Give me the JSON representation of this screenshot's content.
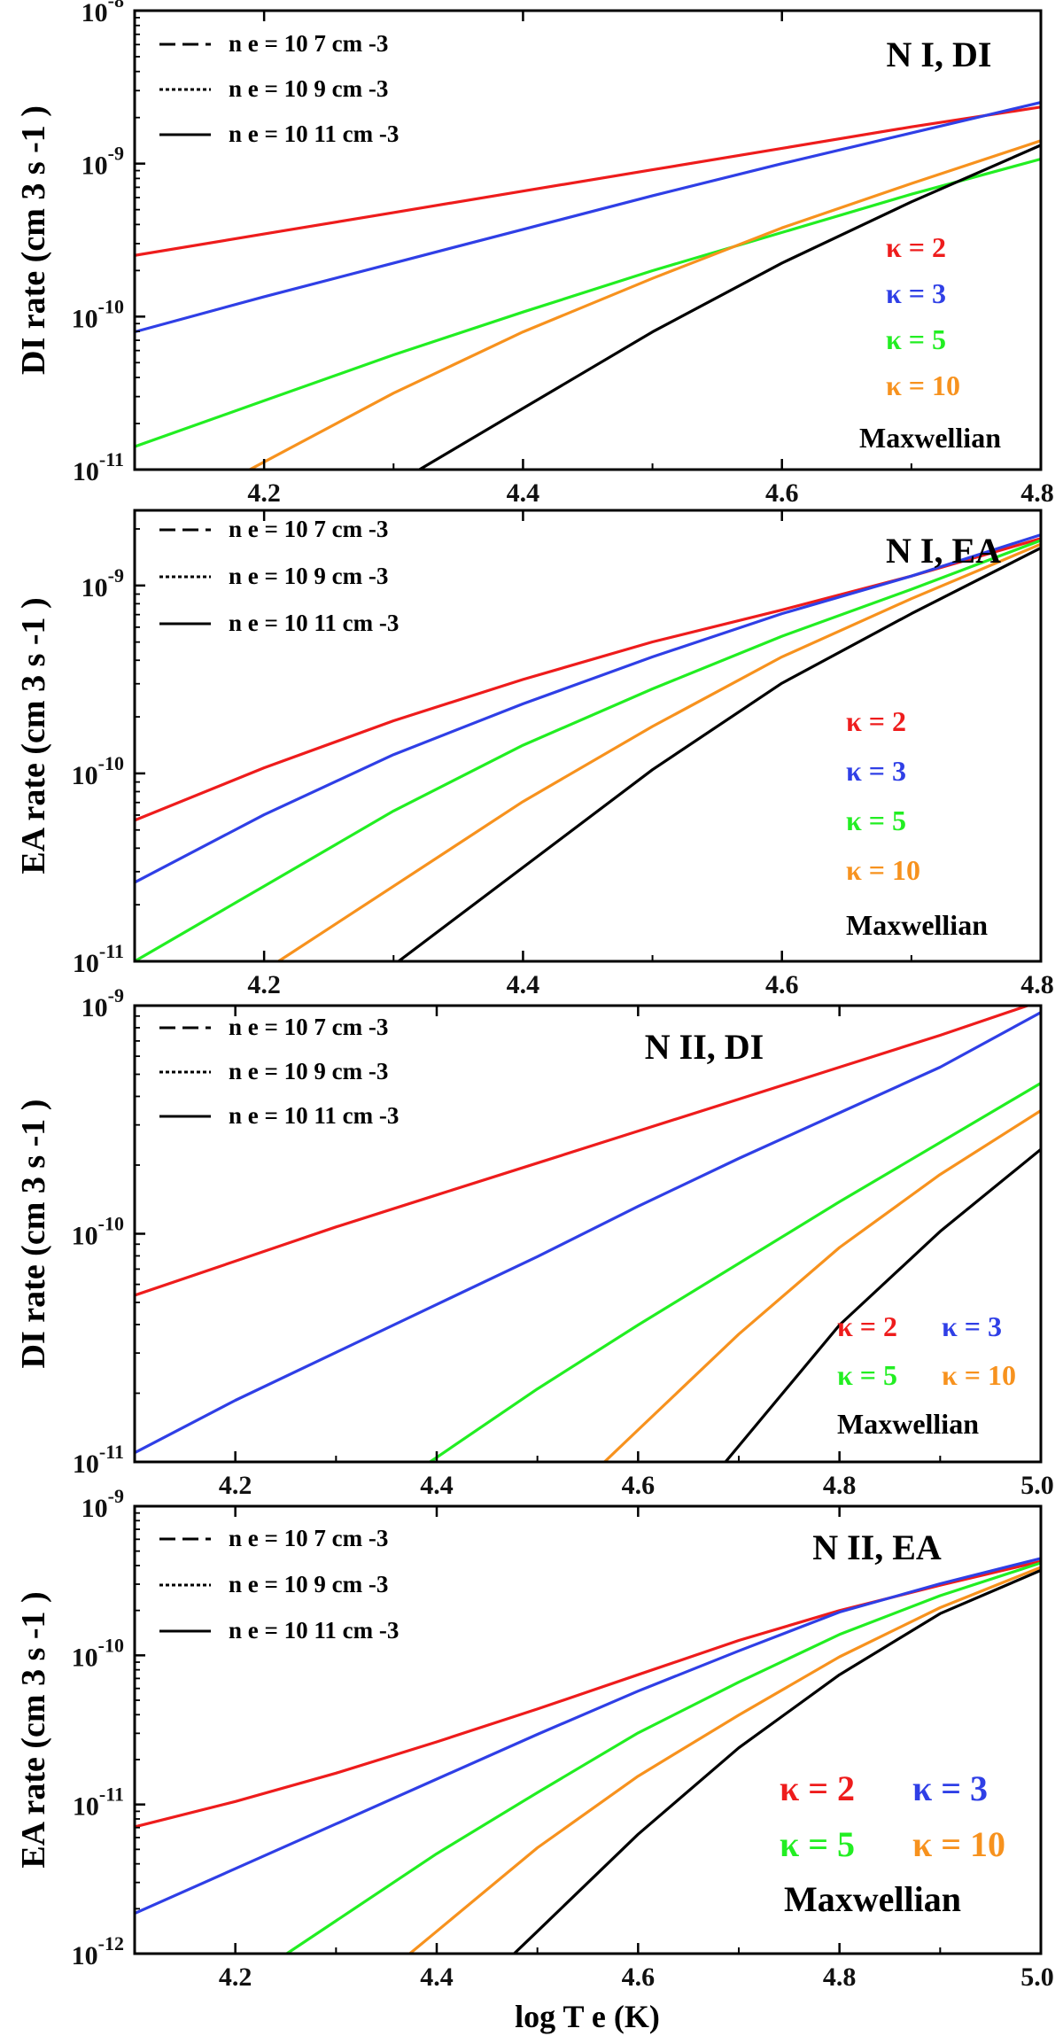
{
  "figure": {
    "xlabel": "log T e (K)"
  },
  "colors": {
    "k2": "#ee1c1c",
    "k3": "#2f3fe6",
    "k5": "#22ee22",
    "k10": "#f7921e",
    "maxwellian": "#000000"
  },
  "legend": {
    "densities": [
      "n e = 10 7 cm -3",
      "n e = 10 9 cm -3",
      "n e = 10 11 cm -3"
    ],
    "styles": [
      "dashed",
      "dotted",
      "solid"
    ]
  },
  "chart_data": [
    {
      "type": "line",
      "title": "N I, DI",
      "ylabel": "DI rate (cm 3 s -1 )",
      "xlim": [
        4.1,
        4.8
      ],
      "ylim_log10": [
        -11,
        -8
      ],
      "xticks": [
        "4.2",
        "4.4",
        "4.6",
        "4.8"
      ],
      "yticks": [
        "10-11",
        "10-10",
        "10-9",
        "10-8"
      ],
      "kappa_labels": [
        "κ = 2",
        "κ = 3",
        "κ = 5",
        "κ = 10",
        "Maxwellian"
      ],
      "x": [
        4.1,
        4.2,
        4.3,
        4.4,
        4.5,
        4.6,
        4.7,
        4.8
      ],
      "series": [
        {
          "name": "κ = 2",
          "color_key": "k2",
          "log10_values": [
            -9.6,
            -9.46,
            -9.32,
            -9.18,
            -9.04,
            -8.9,
            -8.76,
            -8.63
          ]
        },
        {
          "name": "κ = 3",
          "color_key": "k3",
          "log10_values": [
            -10.1,
            -9.87,
            -9.65,
            -9.43,
            -9.21,
            -9.0,
            -8.8,
            -8.6
          ]
        },
        {
          "name": "κ = 5",
          "color_key": "k5",
          "log10_values": [
            -10.85,
            -10.55,
            -10.25,
            -9.97,
            -9.7,
            -9.45,
            -9.2,
            -8.97
          ]
        },
        {
          "name": "κ = 10",
          "color_key": "k10",
          "log10_values": [
            null,
            -10.95,
            -10.5,
            -10.1,
            -9.75,
            -9.42,
            -9.13,
            -8.85
          ]
        },
        {
          "name": "Maxwellian",
          "color_key": "maxwellian",
          "log10_values": [
            null,
            null,
            null,
            -10.6,
            -10.1,
            -9.65,
            -9.25,
            -8.88
          ]
        }
      ]
    },
    {
      "type": "line",
      "title": "N I, EA",
      "ylabel": "EA rate (cm 3 s -1 )",
      "xlim": [
        4.1,
        4.8
      ],
      "ylim_log10": [
        -11,
        -8.6
      ],
      "xticks": [
        "4.2",
        "4.4",
        "4.6",
        "4.8"
      ],
      "yticks": [
        "10-11",
        "10-10",
        "10-9"
      ],
      "kappa_labels": [
        "κ = 2",
        "κ = 3",
        "κ = 5",
        "κ = 10",
        "Maxwellian"
      ],
      "x": [
        4.1,
        4.2,
        4.3,
        4.4,
        4.5,
        4.6,
        4.7,
        4.8
      ],
      "series": [
        {
          "name": "κ = 2",
          "color_key": "k2",
          "log10_values": [
            -10.25,
            -9.97,
            -9.72,
            -9.5,
            -9.3,
            -9.13,
            -8.95,
            -8.75
          ]
        },
        {
          "name": "κ = 3",
          "color_key": "k3",
          "log10_values": [
            -10.58,
            -10.22,
            -9.9,
            -9.63,
            -9.38,
            -9.15,
            -8.95,
            -8.73
          ]
        },
        {
          "name": "κ = 5",
          "color_key": "k5",
          "log10_values": [
            null,
            -10.6,
            -10.2,
            -9.85,
            -9.55,
            -9.27,
            -9.02,
            -8.76
          ]
        },
        {
          "name": "κ = 10",
          "color_key": "k10",
          "log10_values": [
            null,
            null,
            -10.6,
            -10.15,
            -9.75,
            -9.38,
            -9.07,
            -8.78
          ]
        },
        {
          "name": "Maxwellian",
          "color_key": "maxwellian",
          "log10_values": [
            null,
            null,
            null,
            -10.5,
            -9.98,
            -9.52,
            -9.15,
            -8.8
          ]
        }
      ]
    },
    {
      "type": "line",
      "title": "N II, DI",
      "ylabel": "DI rate (cm 3 s -1 )",
      "xlim": [
        4.1,
        5.0
      ],
      "ylim_log10": [
        -11,
        -9
      ],
      "xticks": [
        "4.2",
        "4.4",
        "4.6",
        "4.8",
        "5.0"
      ],
      "yticks": [
        "10-11",
        "10-10",
        "10-9"
      ],
      "kappa_labels": [
        "κ = 2",
        "κ = 3",
        "κ = 5",
        "κ = 10",
        "Maxwellian"
      ],
      "x": [
        4.1,
        4.2,
        4.3,
        4.4,
        4.5,
        4.6,
        4.7,
        4.8,
        4.9,
        5.0
      ],
      "series": [
        {
          "name": "κ = 2",
          "color_key": "k2",
          "log10_values": [
            -10.27,
            -10.12,
            -9.97,
            -9.83,
            -9.69,
            -9.55,
            -9.41,
            -9.27,
            -9.13,
            -8.98
          ]
        },
        {
          "name": "κ = 3",
          "color_key": "k3",
          "log10_values": [
            -10.96,
            -10.73,
            -10.52,
            -10.31,
            -10.1,
            -9.88,
            -9.67,
            -9.47,
            -9.27,
            -9.03
          ]
        },
        {
          "name": "κ = 5",
          "color_key": "k5",
          "log10_values": [
            null,
            null,
            null,
            -10.98,
            -10.68,
            -10.4,
            -10.13,
            -9.86,
            -9.6,
            -9.34
          ]
        },
        {
          "name": "κ = 10",
          "color_key": "k10",
          "log10_values": [
            null,
            null,
            null,
            null,
            null,
            -10.86,
            -10.44,
            -10.06,
            -9.74,
            -9.46
          ]
        },
        {
          "name": "Maxwellian",
          "color_key": "maxwellian",
          "log10_values": [
            null,
            null,
            null,
            null,
            null,
            null,
            -10.93,
            -10.4,
            -9.99,
            -9.63
          ]
        }
      ]
    },
    {
      "type": "line",
      "title": "N II, EA",
      "ylabel": "EA rate (cm 3 s -1 )",
      "xlim": [
        4.1,
        5.0
      ],
      "ylim_log10": [
        -12,
        -9
      ],
      "xticks": [
        "4.2",
        "4.4",
        "4.6",
        "4.8",
        "5.0"
      ],
      "yticks": [
        "10-12",
        "10-11",
        "10-10",
        "10-9"
      ],
      "kappa_labels": [
        "κ = 2",
        "κ = 3",
        "κ = 5",
        "κ = 10",
        "Maxwellian"
      ],
      "x": [
        4.1,
        4.2,
        4.3,
        4.4,
        4.5,
        4.6,
        4.7,
        4.8,
        4.9,
        5.0
      ],
      "series": [
        {
          "name": "κ = 2",
          "color_key": "k2",
          "log10_values": [
            -11.15,
            -10.98,
            -10.79,
            -10.58,
            -10.36,
            -10.13,
            -9.9,
            -9.7,
            -9.53,
            -9.37
          ]
        },
        {
          "name": "κ = 3",
          "color_key": "k3",
          "log10_values": [
            -11.73,
            -11.43,
            -11.13,
            -10.83,
            -10.53,
            -10.24,
            -9.97,
            -9.71,
            -9.52,
            -9.35
          ]
        },
        {
          "name": "κ = 5",
          "color_key": "k5",
          "log10_values": [
            null,
            null,
            -11.78,
            -11.33,
            -10.92,
            -10.52,
            -10.18,
            -9.86,
            -9.6,
            -9.38
          ]
        },
        {
          "name": "κ = 10",
          "color_key": "k10",
          "log10_values": [
            null,
            null,
            null,
            -11.85,
            -11.29,
            -10.81,
            -10.4,
            -10.01,
            -9.68,
            -9.41
          ]
        },
        {
          "name": "Maxwellian",
          "color_key": "maxwellian",
          "log10_values": [
            null,
            null,
            null,
            null,
            -11.85,
            -11.2,
            -10.62,
            -10.13,
            -9.72,
            -9.43
          ]
        }
      ]
    }
  ]
}
